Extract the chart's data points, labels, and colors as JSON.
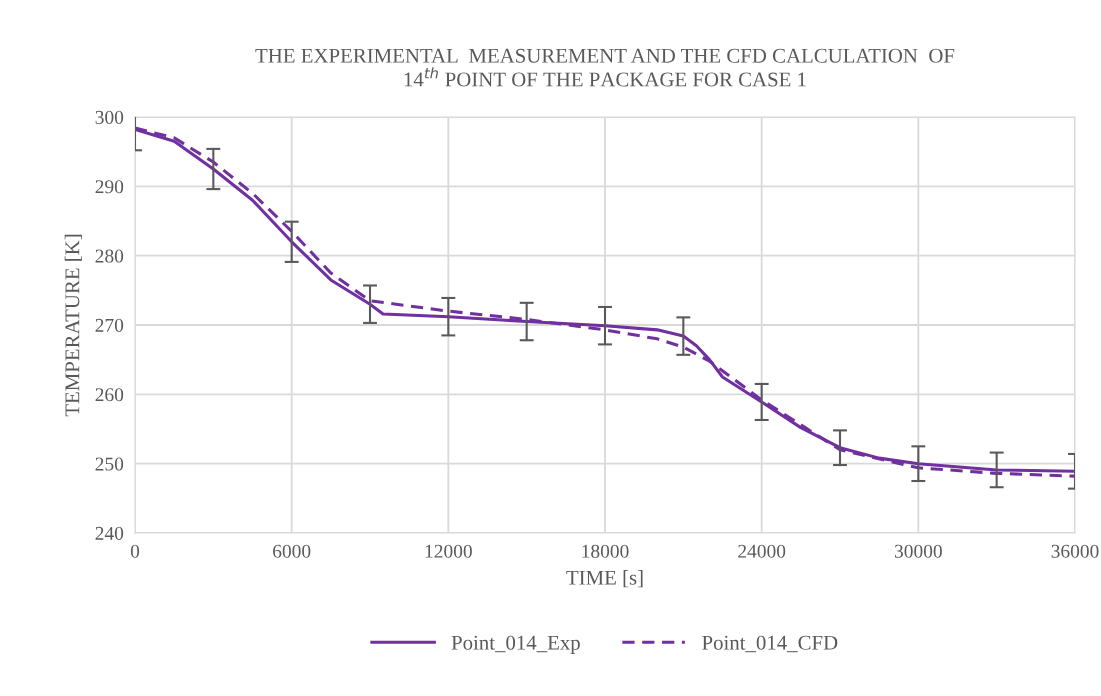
{
  "chart_data": {
    "type": "line",
    "title": "THE EXPERIMENTAL  MEASUREMENT AND THE CFD CALCULATION  OF\n14$^{th}$ POINT OF THE PACKAGE FOR CASE 1",
    "xlabel": "TIME [s]",
    "ylabel": "TEMPERATURE [K]",
    "series": [
      {
        "name": "Point_014_Exp",
        "color": "#7030a0",
        "line_style": "solid",
        "x": [
          0,
          1500,
          3000,
          4500,
          6000,
          7500,
          9000,
          9500,
          12000,
          15000,
          18000,
          20000,
          21000,
          21500,
          22000,
          22500,
          24000,
          25500,
          27000,
          28500,
          30000,
          33000,
          36000
        ],
        "values": [
          298.2,
          296.5,
          292.5,
          288,
          282,
          276.5,
          273,
          271.6,
          271.2,
          270.5,
          269.9,
          269.3,
          268.4,
          267,
          265,
          262.5,
          258.9,
          255.2,
          252.3,
          250.8,
          250,
          249.1,
          248.9
        ],
        "errors": [
          3.0,
          null,
          2.9,
          null,
          2.9,
          null,
          2.7,
          null,
          2.7,
          2.7,
          2.7,
          null,
          2.7,
          null,
          null,
          null,
          2.6,
          null,
          2.5,
          null,
          2.5,
          2.5,
          2.5
        ]
      },
      {
        "name": "Point_014_CFD",
        "color": "#7030a0",
        "line_style": "dashed",
        "x": [
          0,
          1500,
          3000,
          4500,
          6000,
          7500,
          9000,
          10000,
          12000,
          15000,
          18000,
          20000,
          21000,
          22000,
          24000,
          27000,
          30000,
          33000,
          36000
        ],
        "values": [
          298.4,
          297,
          293.5,
          289,
          283.5,
          277.5,
          273.5,
          273,
          272,
          270.8,
          269.3,
          268,
          266.8,
          264.8,
          259.2,
          252,
          249.4,
          248.6,
          248.2
        ]
      }
    ],
    "xlim": [
      0,
      36000
    ],
    "xticks": [
      0,
      6000,
      12000,
      18000,
      24000,
      30000,
      36000
    ],
    "ylim": [
      240,
      300
    ],
    "yticks": [
      240,
      250,
      260,
      270,
      280,
      290,
      300
    ],
    "grid": true,
    "legend": "bottom"
  }
}
